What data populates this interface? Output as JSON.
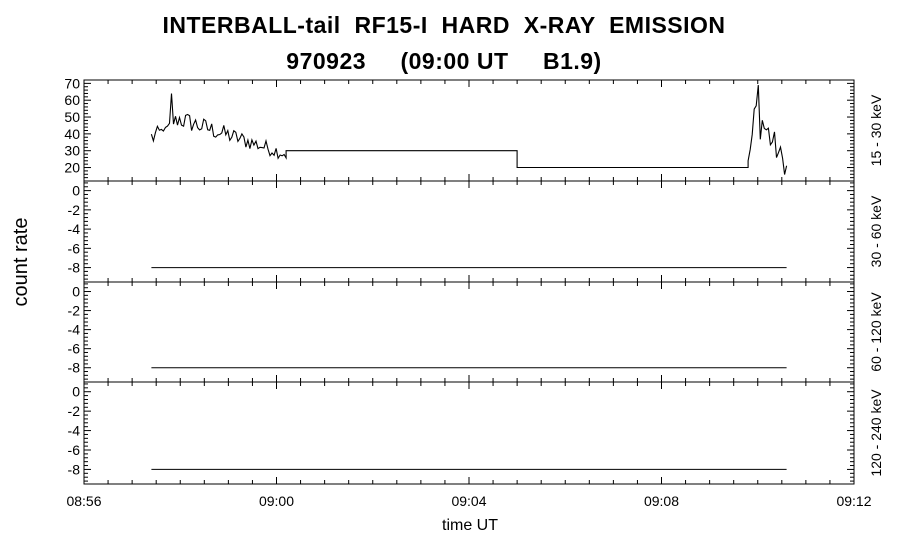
{
  "title_line1": "INTERBALL-tail  RF15-I  HARD  X-RAY  EMISSION",
  "title_line2": "970923     (09:00 UT     B1.9)",
  "ylabel": "count rate",
  "xlabel": "time UT",
  "x_ticks": [
    "08:56",
    "09:00",
    "09:04",
    "09:08",
    "09:12"
  ],
  "chart_data": [
    {
      "type": "line",
      "panel_label": "15 - 30 keV",
      "ylim": [
        12,
        72
      ],
      "yticks": [
        20,
        30,
        40,
        50,
        60,
        70
      ],
      "ytick_labels": [
        "20",
        "30",
        "40",
        "50",
        "60",
        "70"
      ],
      "segments": [
        {
          "noisy": true,
          "x": [
            "08:57:24",
            "09:00:12"
          ],
          "y": [
            [
              30,
              45
            ],
            [
              55,
              43
            ],
            [
              32,
              24
            ]
          ]
        },
        {
          "x": [
            "09:00:12",
            "09:05:00",
            "09:05:00",
            "09:09:48"
          ],
          "y": [
            30,
            30,
            20,
            20
          ]
        },
        {
          "noisy": true,
          "x": [
            "09:09:48",
            "09:10:36"
          ],
          "y": [
            [
              20,
              25
            ],
            [
              68,
              40
            ],
            [
              25,
              14
            ]
          ]
        }
      ],
      "burst_peaks": [
        {
          "time": "08:57:48",
          "value": 64
        },
        {
          "time": "09:10:00",
          "value": 69
        }
      ]
    },
    {
      "type": "line",
      "panel_label": "30 - 60 keV",
      "ylim": [
        -9.5,
        1
      ],
      "yticks": [
        0,
        -2,
        -4,
        -6,
        -8
      ],
      "ytick_labels": [
        "0",
        "-2",
        "-4",
        "-6",
        "-8"
      ],
      "x": [
        "08:57:24",
        "09:10:36"
      ],
      "y": [
        -8,
        -8
      ]
    },
    {
      "type": "line",
      "panel_label": "60 - 120 keV",
      "ylim": [
        -9.5,
        1
      ],
      "yticks": [
        0,
        -2,
        -4,
        -6,
        -8
      ],
      "ytick_labels": [
        "0",
        "-2",
        "-4",
        "-6",
        "-8"
      ],
      "x": [
        "08:57:24",
        "09:10:36"
      ],
      "y": [
        -8,
        -8
      ]
    },
    {
      "type": "line",
      "panel_label": "120 - 240 keV",
      "ylim": [
        -9.5,
        1
      ],
      "yticks": [
        0,
        -2,
        -4,
        -6,
        -8
      ],
      "ytick_labels": [
        "0",
        "-2",
        "-4",
        "-6",
        "-8"
      ],
      "x": [
        "08:57:24",
        "09:10:36"
      ],
      "y": [
        -8,
        -8
      ]
    }
  ]
}
